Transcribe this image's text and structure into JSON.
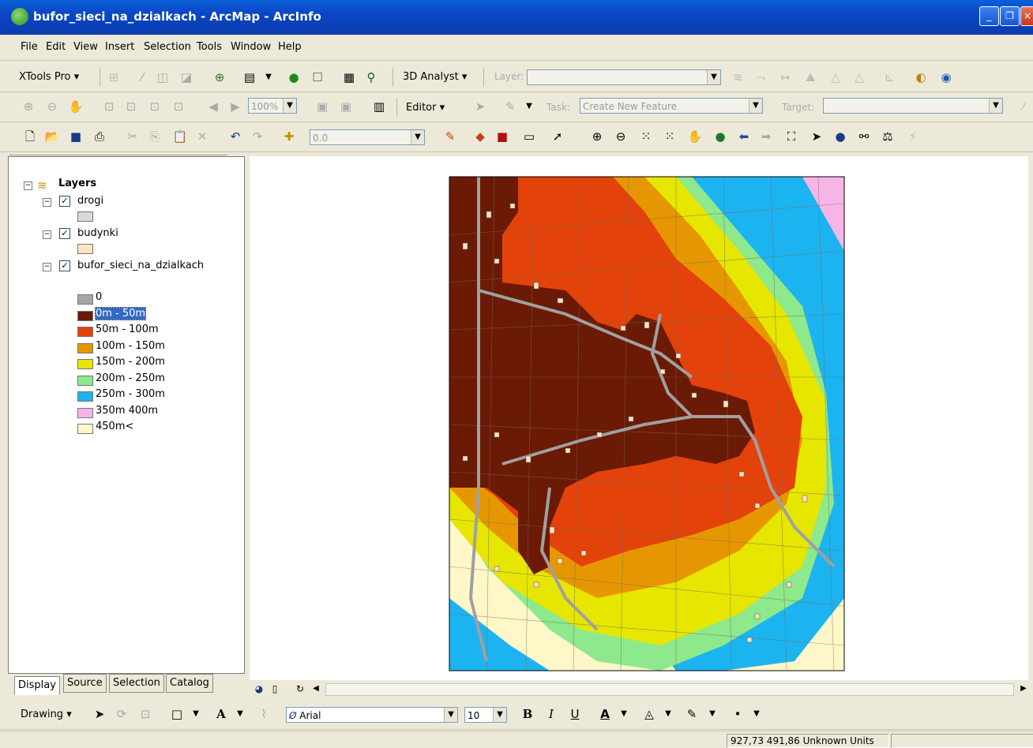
{
  "window": {
    "title": "bufor_sieci_na_dzialkach - ArcMap - ArcInfo"
  },
  "menu": [
    "File",
    "Edit",
    "View",
    "Insert",
    "Selection",
    "Tools",
    "Window",
    "Help"
  ],
  "toolbar1": {
    "xtools": "XTools Pro ▾",
    "analyst": "3D Analyst ▾",
    "layer_label": "Layer:"
  },
  "toolbar2": {
    "zoom": "100%",
    "editor": "Editor ▾",
    "task_label": "Task:",
    "task_value": "Create New Feature",
    "target_label": "Target:"
  },
  "toolbar3": {
    "scale": "0.0"
  },
  "toc": {
    "root": "Layers",
    "layers": [
      {
        "name": "drogi",
        "swatch": "#d9d9d9"
      },
      {
        "name": "budynki",
        "swatch": "#fde3c5"
      },
      {
        "name": "bufor_sieci_na_dzialkach"
      }
    ],
    "legend": [
      {
        "label": "0",
        "color": "#a6a6a6"
      },
      {
        "label": "0m - 50m",
        "color": "#6b1a06"
      },
      {
        "label": "50m - 100m",
        "color": "#e3420a"
      },
      {
        "label": "100m - 150m",
        "color": "#e69700"
      },
      {
        "label": "150m - 200m",
        "color": "#e6e600"
      },
      {
        "label": "200m - 250m",
        "color": "#8ee88c"
      },
      {
        "label": "250m - 300m",
        "color": "#1cb4f0"
      },
      {
        "label": "350m 400m",
        "color": "#f7b4e6"
      },
      {
        "label": "450m<",
        "color": "#fff7c8"
      }
    ],
    "tabs": [
      "Display",
      "Source",
      "Selection",
      "Catalog"
    ]
  },
  "drawing": {
    "label": "Drawing ▾",
    "font": "Arial",
    "size": "10",
    "bold": "B",
    "italic": "I",
    "underline": "U",
    "fontcolor": "A"
  },
  "status": {
    "coords": "927,73  491,86 Unknown Units"
  }
}
